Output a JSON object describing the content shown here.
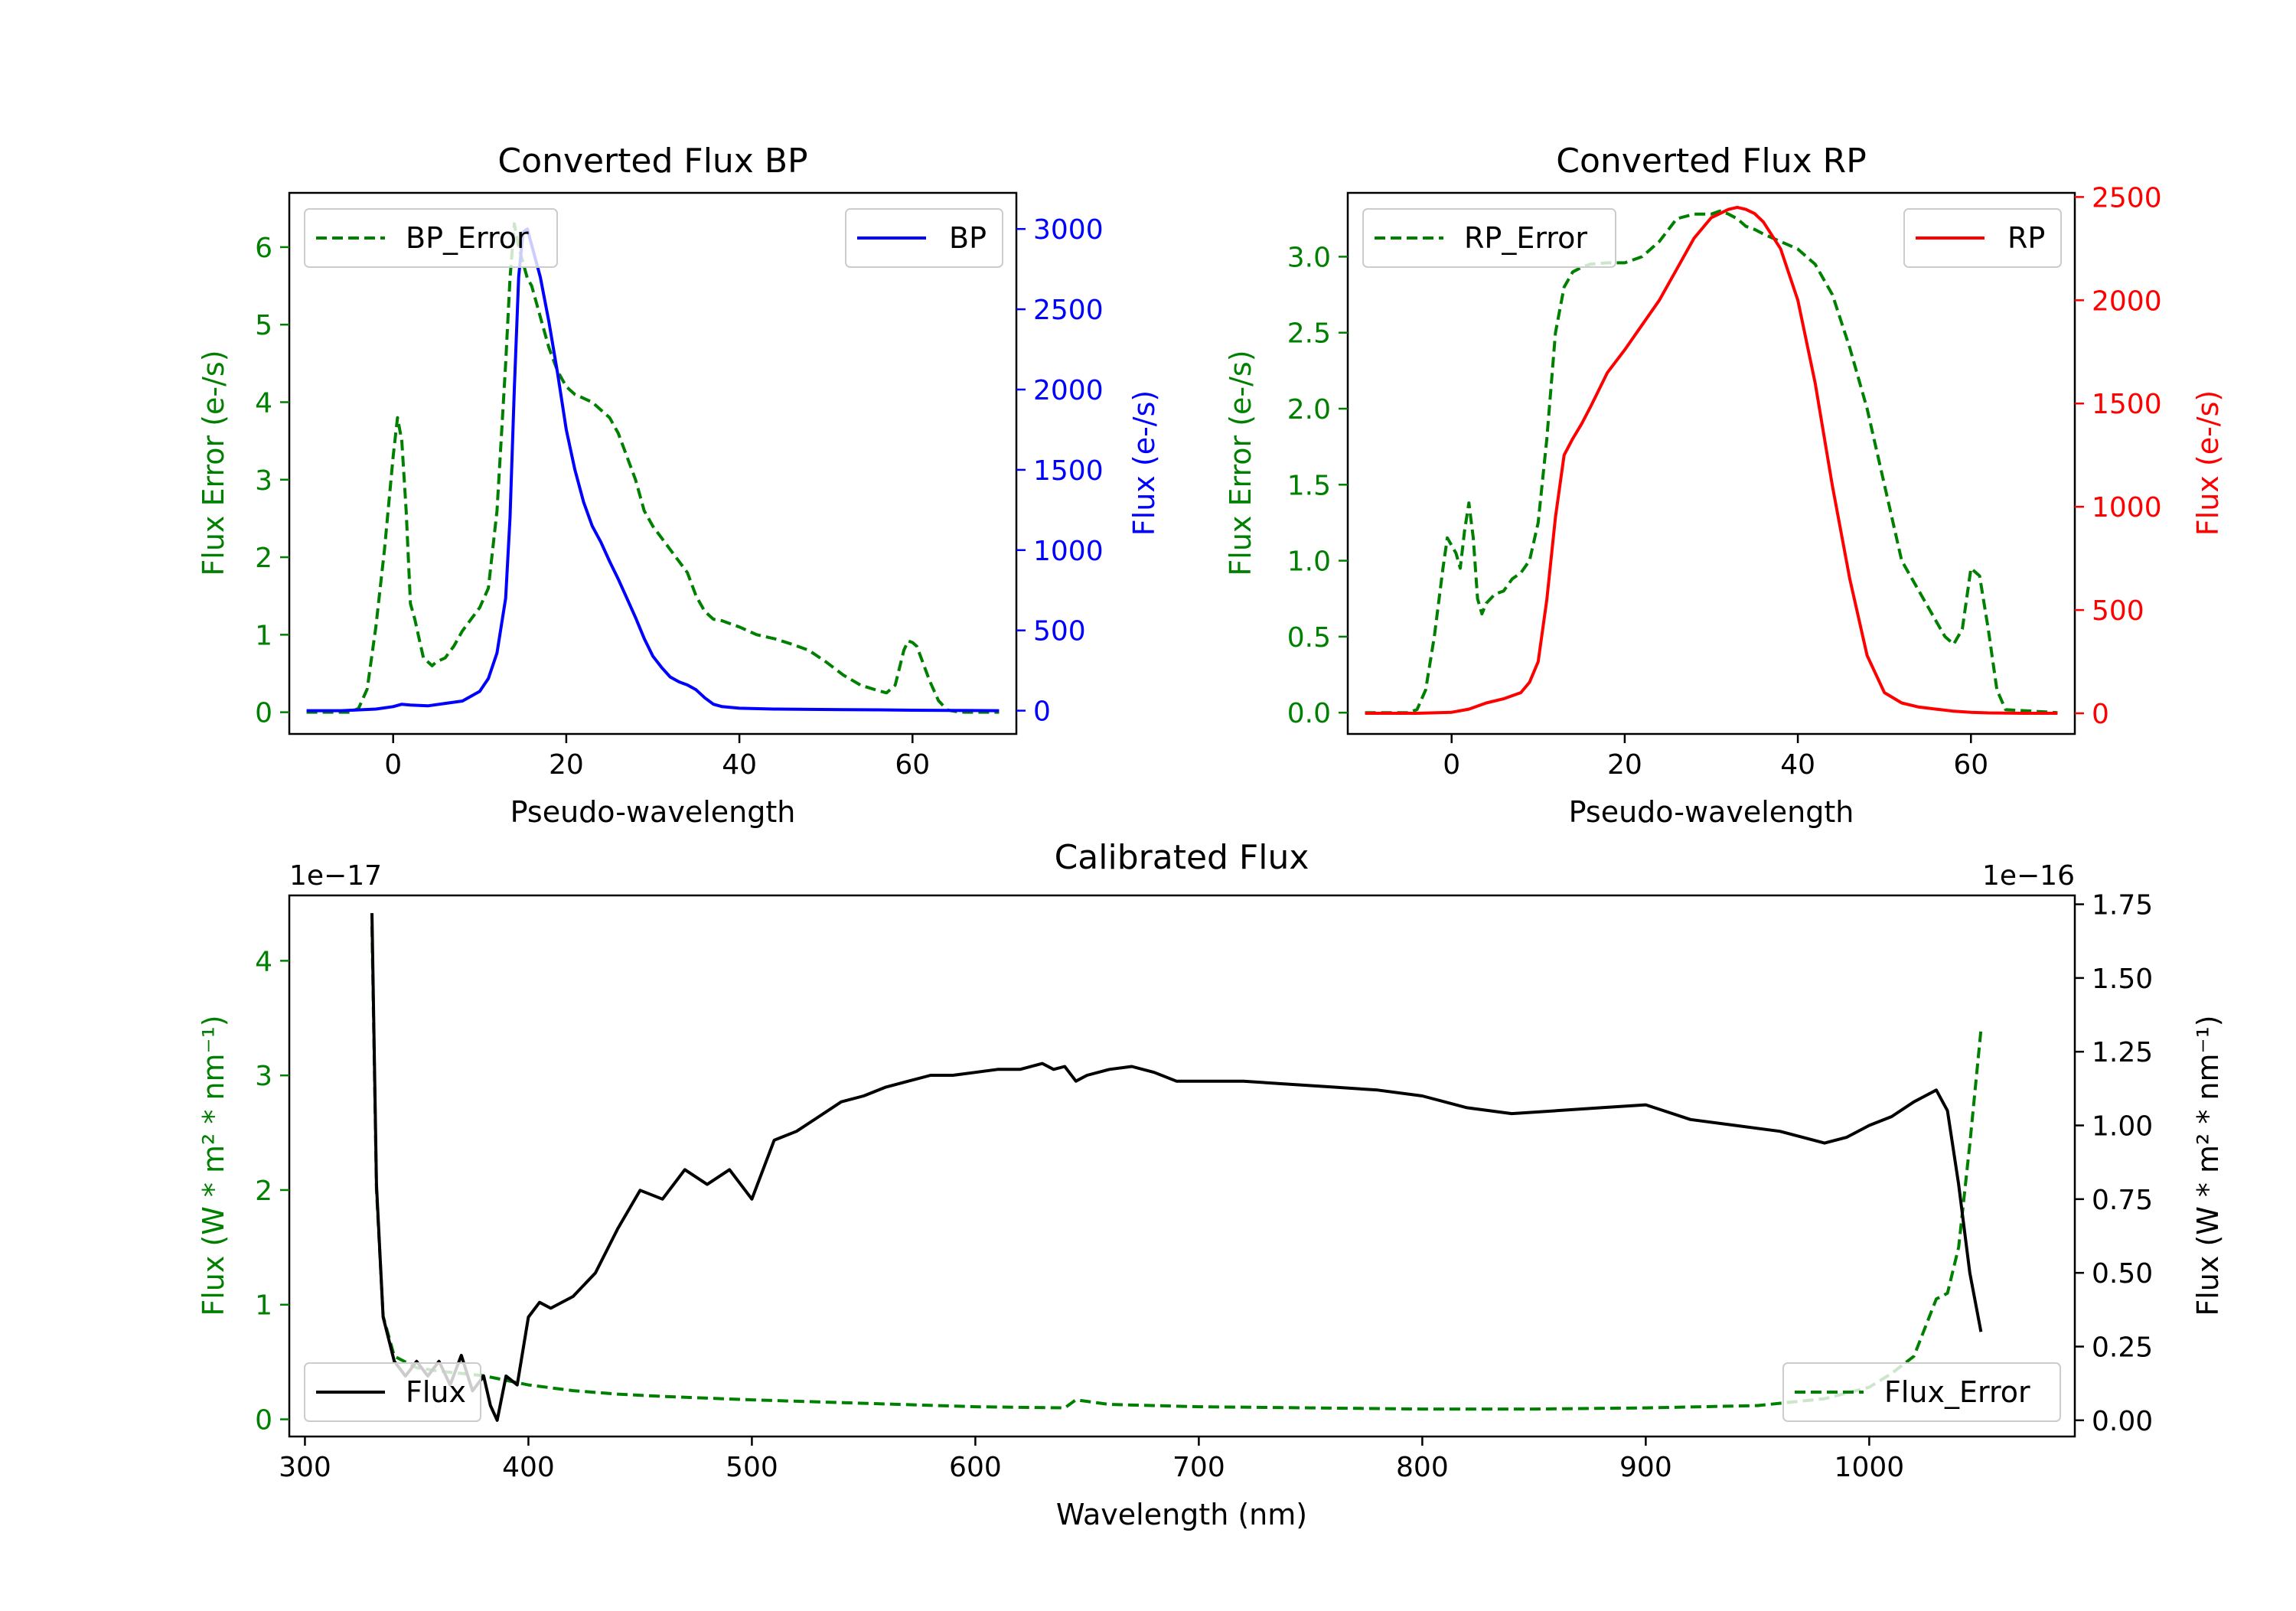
{
  "chart_data": [
    {
      "type": "line",
      "title": "Converted Flux BP",
      "xlabel": "Pseudo-wavelength",
      "ylabel_left": "Flux Error (e-/s)",
      "ylabel_right": "Flux (e-/s)",
      "xlim": [
        -12,
        72
      ],
      "ylim_left": [
        -0.28,
        6.7
      ],
      "ylim_right": [
        -145,
        3225
      ],
      "xticks": [
        "0",
        "20",
        "40",
        "60"
      ],
      "xtick_values": [
        0,
        20,
        40,
        60
      ],
      "yticks_left": [
        "0",
        "1",
        "2",
        "3",
        "4",
        "5",
        "6"
      ],
      "ytick_values_left": [
        0,
        1,
        2,
        3,
        4,
        5,
        6
      ],
      "yticks_right": [
        "0",
        "500",
        "1000",
        "1500",
        "2000",
        "2500",
        "3000"
      ],
      "ytick_values_right": [
        0,
        500,
        1000,
        1500,
        2000,
        2500,
        3000
      ],
      "colors": {
        "left_axis": "#008000",
        "right_axis": "#0000ff"
      },
      "series": [
        {
          "name": "BP_Error",
          "axis": "left",
          "style": "dashed",
          "color": "#008000",
          "x": [
            -10,
            -5,
            -4,
            -3,
            -2,
            -1,
            0,
            0.5,
            1,
            1.5,
            2,
            2.5,
            3,
            3.5,
            4,
            4.5,
            5,
            6,
            7,
            8,
            9,
            10,
            11,
            12,
            13,
            13.5,
            14,
            14.5,
            15,
            15.5,
            16,
            17,
            18,
            19,
            20,
            21,
            22,
            23,
            24,
            25,
            26,
            27,
            28,
            29,
            30,
            31,
            32,
            33,
            34,
            35,
            36,
            37,
            38,
            40,
            42,
            44,
            46,
            48,
            50,
            52,
            54,
            56,
            57,
            58,
            59,
            59.5,
            60,
            60.5,
            61,
            62,
            63,
            64,
            65,
            66,
            70
          ],
          "y": [
            0,
            0,
            0.05,
            0.3,
            1.1,
            2.1,
            3.3,
            3.8,
            3.5,
            2.6,
            1.4,
            1.2,
            0.95,
            0.7,
            0.65,
            0.6,
            0.65,
            0.7,
            0.85,
            1.05,
            1.2,
            1.35,
            1.6,
            2.6,
            4.5,
            5.6,
            6.3,
            6.0,
            5.8,
            5.6,
            5.5,
            5.1,
            4.7,
            4.4,
            4.2,
            4.1,
            4.05,
            4.0,
            3.9,
            3.8,
            3.6,
            3.3,
            3.0,
            2.6,
            2.4,
            2.25,
            2.1,
            1.95,
            1.8,
            1.5,
            1.3,
            1.2,
            1.18,
            1.1,
            1.0,
            0.95,
            0.88,
            0.8,
            0.65,
            0.48,
            0.35,
            0.28,
            0.25,
            0.35,
            0.8,
            0.92,
            0.9,
            0.85,
            0.7,
            0.4,
            0.15,
            0.03,
            0.01,
            0,
            0
          ]
        },
        {
          "name": "BP",
          "axis": "right",
          "style": "solid",
          "color": "#0000ff",
          "x": [
            -10,
            -6,
            -2,
            0,
            1,
            2,
            4,
            6,
            8,
            10,
            11,
            12,
            13,
            13.5,
            14,
            14.5,
            15,
            15.5,
            16,
            17,
            18,
            19,
            20,
            21,
            22,
            23,
            24,
            25,
            26,
            27,
            28,
            29,
            30,
            31,
            32,
            33,
            34,
            35,
            36,
            37,
            38,
            40,
            44,
            48,
            52,
            56,
            60,
            64,
            70
          ],
          "y": [
            0,
            0,
            10,
            25,
            40,
            35,
            30,
            45,
            60,
            120,
            200,
            360,
            700,
            1200,
            2000,
            2700,
            2980,
            3000,
            2900,
            2700,
            2420,
            2100,
            1750,
            1500,
            1300,
            1150,
            1050,
            930,
            820,
            700,
            580,
            450,
            340,
            270,
            210,
            180,
            160,
            130,
            80,
            40,
            25,
            15,
            10,
            8,
            6,
            5,
            3,
            2,
            0
          ]
        }
      ],
      "legend": [
        {
          "label": "BP_Error",
          "position": "upper-left"
        },
        {
          "label": "BP",
          "position": "upper-right"
        }
      ]
    },
    {
      "type": "line",
      "title": "Converted Flux RP",
      "xlabel": "Pseudo-wavelength",
      "ylabel_left": "Flux Error (e-/s)",
      "ylabel_right": "Flux (e-/s)",
      "xlim": [
        -12,
        72
      ],
      "ylim_left": [
        -0.14,
        3.42
      ],
      "ylim_right": [
        -100,
        2520
      ],
      "xticks": [
        "0",
        "20",
        "40",
        "60"
      ],
      "xtick_values": [
        0,
        20,
        40,
        60
      ],
      "yticks_left": [
        "0.0",
        "0.5",
        "1.0",
        "1.5",
        "2.0",
        "2.5",
        "3.0"
      ],
      "ytick_values_left": [
        0,
        0.5,
        1.0,
        1.5,
        2.0,
        2.5,
        3.0
      ],
      "yticks_right": [
        "0",
        "500",
        "1000",
        "1500",
        "2000",
        "2500"
      ],
      "ytick_values_right": [
        0,
        500,
        1000,
        1500,
        2000,
        2500
      ],
      "colors": {
        "left_axis": "#008000",
        "right_axis": "#ff0000"
      },
      "series": [
        {
          "name": "RP_Error",
          "axis": "left",
          "style": "dashed",
          "color": "#008000",
          "x": [
            -10,
            -5,
            -4,
            -3,
            -2,
            -1,
            -0.5,
            0,
            0.5,
            1,
            1.5,
            2,
            2.5,
            3,
            3.5,
            4,
            5,
            6,
            7,
            8,
            9,
            10,
            11,
            12,
            13,
            14,
            15,
            16,
            18,
            20,
            22,
            24,
            26,
            28,
            30,
            31,
            32,
            33,
            34,
            35,
            36,
            38,
            40,
            42,
            44,
            46,
            48,
            50,
            52,
            54,
            56,
            57,
            58,
            59,
            60,
            61,
            62,
            63,
            64,
            70
          ],
          "y": [
            0,
            0,
            0.02,
            0.15,
            0.5,
            0.95,
            1.15,
            1.1,
            1.05,
            0.95,
            1.2,
            1.38,
            1.15,
            0.75,
            0.65,
            0.72,
            0.78,
            0.8,
            0.88,
            0.92,
            1.0,
            1.25,
            1.8,
            2.5,
            2.8,
            2.9,
            2.93,
            2.95,
            2.96,
            2.96,
            3.0,
            3.1,
            3.25,
            3.28,
            3.28,
            3.3,
            3.28,
            3.25,
            3.2,
            3.18,
            3.15,
            3.1,
            3.05,
            2.95,
            2.75,
            2.4,
            2.0,
            1.5,
            1.0,
            0.8,
            0.6,
            0.5,
            0.45,
            0.55,
            0.95,
            0.9,
            0.55,
            0.15,
            0.02,
            0
          ]
        },
        {
          "name": "RP",
          "axis": "right",
          "style": "solid",
          "color": "#ff0000",
          "x": [
            -10,
            -4,
            0,
            2,
            4,
            6,
            8,
            9,
            10,
            11,
            12,
            13,
            14,
            15,
            16,
            18,
            20,
            22,
            24,
            26,
            28,
            30,
            32,
            33,
            34,
            35,
            36,
            38,
            40,
            42,
            44,
            46,
            48,
            50,
            52,
            54,
            56,
            58,
            60,
            62,
            66,
            70
          ],
          "y": [
            0,
            0,
            5,
            20,
            50,
            70,
            100,
            150,
            250,
            550,
            950,
            1250,
            1330,
            1400,
            1480,
            1650,
            1760,
            1880,
            2000,
            2150,
            2300,
            2400,
            2440,
            2450,
            2440,
            2420,
            2380,
            2250,
            2000,
            1600,
            1100,
            650,
            280,
            100,
            50,
            30,
            20,
            10,
            5,
            2,
            0,
            0
          ]
        }
      ],
      "legend": [
        {
          "label": "RP_Error",
          "position": "upper-left"
        },
        {
          "label": "RP",
          "position": "upper-right"
        }
      ]
    },
    {
      "type": "line",
      "title": "Calibrated Flux",
      "xlabel": "Wavelength (nm)",
      "ylabel_left": "Flux (W * m² * nm⁻¹)",
      "ylabel_right": "Flux (W * m² * nm⁻¹)",
      "offset_left": "1e−17",
      "offset_right": "1e−16",
      "xlim": [
        293,
        1092
      ],
      "ylim_left": [
        -0.15,
        4.57
      ],
      "ylim_right": [
        -0.055,
        1.78
      ],
      "xticks": [
        "300",
        "400",
        "500",
        "600",
        "700",
        "800",
        "900",
        "1000"
      ],
      "xtick_values": [
        300,
        400,
        500,
        600,
        700,
        800,
        900,
        1000
      ],
      "yticks_left": [
        "0",
        "1",
        "2",
        "3",
        "4"
      ],
      "ytick_values_left": [
        0,
        1,
        2,
        3,
        4
      ],
      "yticks_right": [
        "0.00",
        "0.25",
        "0.50",
        "0.75",
        "1.00",
        "1.25",
        "1.50",
        "1.75"
      ],
      "ytick_values_right": [
        0,
        0.25,
        0.5,
        0.75,
        1.0,
        1.25,
        1.5,
        1.75
      ],
      "colors": {
        "left_axis": "#008000",
        "right_axis": "#000000"
      },
      "series": [
        {
          "name": "Flux_Error",
          "axis": "left",
          "style": "dashed",
          "color": "#008000",
          "x": [
            330,
            332,
            335,
            340,
            350,
            360,
            380,
            400,
            420,
            440,
            460,
            500,
            550,
            600,
            640,
            645,
            660,
            700,
            750,
            800,
            850,
            900,
            950,
            980,
            1000,
            1010,
            1020,
            1025,
            1030,
            1035,
            1040,
            1045,
            1050
          ],
          "y": [
            4.3,
            2.0,
            0.9,
            0.55,
            0.45,
            0.42,
            0.38,
            0.3,
            0.25,
            0.22,
            0.2,
            0.17,
            0.14,
            0.11,
            0.1,
            0.17,
            0.13,
            0.11,
            0.1,
            0.09,
            0.09,
            0.1,
            0.12,
            0.18,
            0.28,
            0.4,
            0.55,
            0.8,
            1.05,
            1.1,
            1.5,
            2.4,
            3.4
          ]
        },
        {
          "name": "Flux",
          "axis": "right",
          "style": "solid",
          "color": "#000000",
          "x": [
            330,
            332,
            335,
            340,
            345,
            350,
            355,
            360,
            365,
            370,
            375,
            380,
            383,
            386,
            390,
            395,
            400,
            405,
            410,
            420,
            430,
            440,
            450,
            460,
            470,
            480,
            490,
            500,
            510,
            520,
            530,
            540,
            550,
            560,
            570,
            580,
            590,
            600,
            610,
            620,
            630,
            635,
            640,
            645,
            650,
            660,
            670,
            680,
            690,
            700,
            720,
            740,
            760,
            780,
            800,
            820,
            840,
            860,
            880,
            900,
            920,
            940,
            960,
            980,
            990,
            1000,
            1010,
            1020,
            1025,
            1030,
            1035,
            1040,
            1045,
            1050
          ],
          "y": [
            1.72,
            0.8,
            0.35,
            0.2,
            0.15,
            0.2,
            0.15,
            0.2,
            0.12,
            0.22,
            0.1,
            0.15,
            0.05,
            0.0,
            0.15,
            0.12,
            0.35,
            0.4,
            0.38,
            0.42,
            0.5,
            0.65,
            0.78,
            0.75,
            0.85,
            0.8,
            0.85,
            0.75,
            0.95,
            0.98,
            1.03,
            1.08,
            1.1,
            1.13,
            1.15,
            1.17,
            1.17,
            1.18,
            1.19,
            1.19,
            1.21,
            1.19,
            1.2,
            1.15,
            1.17,
            1.19,
            1.2,
            1.18,
            1.15,
            1.15,
            1.15,
            1.14,
            1.13,
            1.12,
            1.1,
            1.06,
            1.04,
            1.05,
            1.06,
            1.07,
            1.02,
            1.0,
            0.98,
            0.94,
            0.96,
            1.0,
            1.03,
            1.08,
            1.1,
            1.12,
            1.05,
            0.8,
            0.5,
            0.3
          ]
        }
      ],
      "legend": [
        {
          "label": "Flux",
          "position": "lower-left"
        },
        {
          "label": "Flux_Error",
          "position": "lower-right"
        }
      ]
    }
  ]
}
